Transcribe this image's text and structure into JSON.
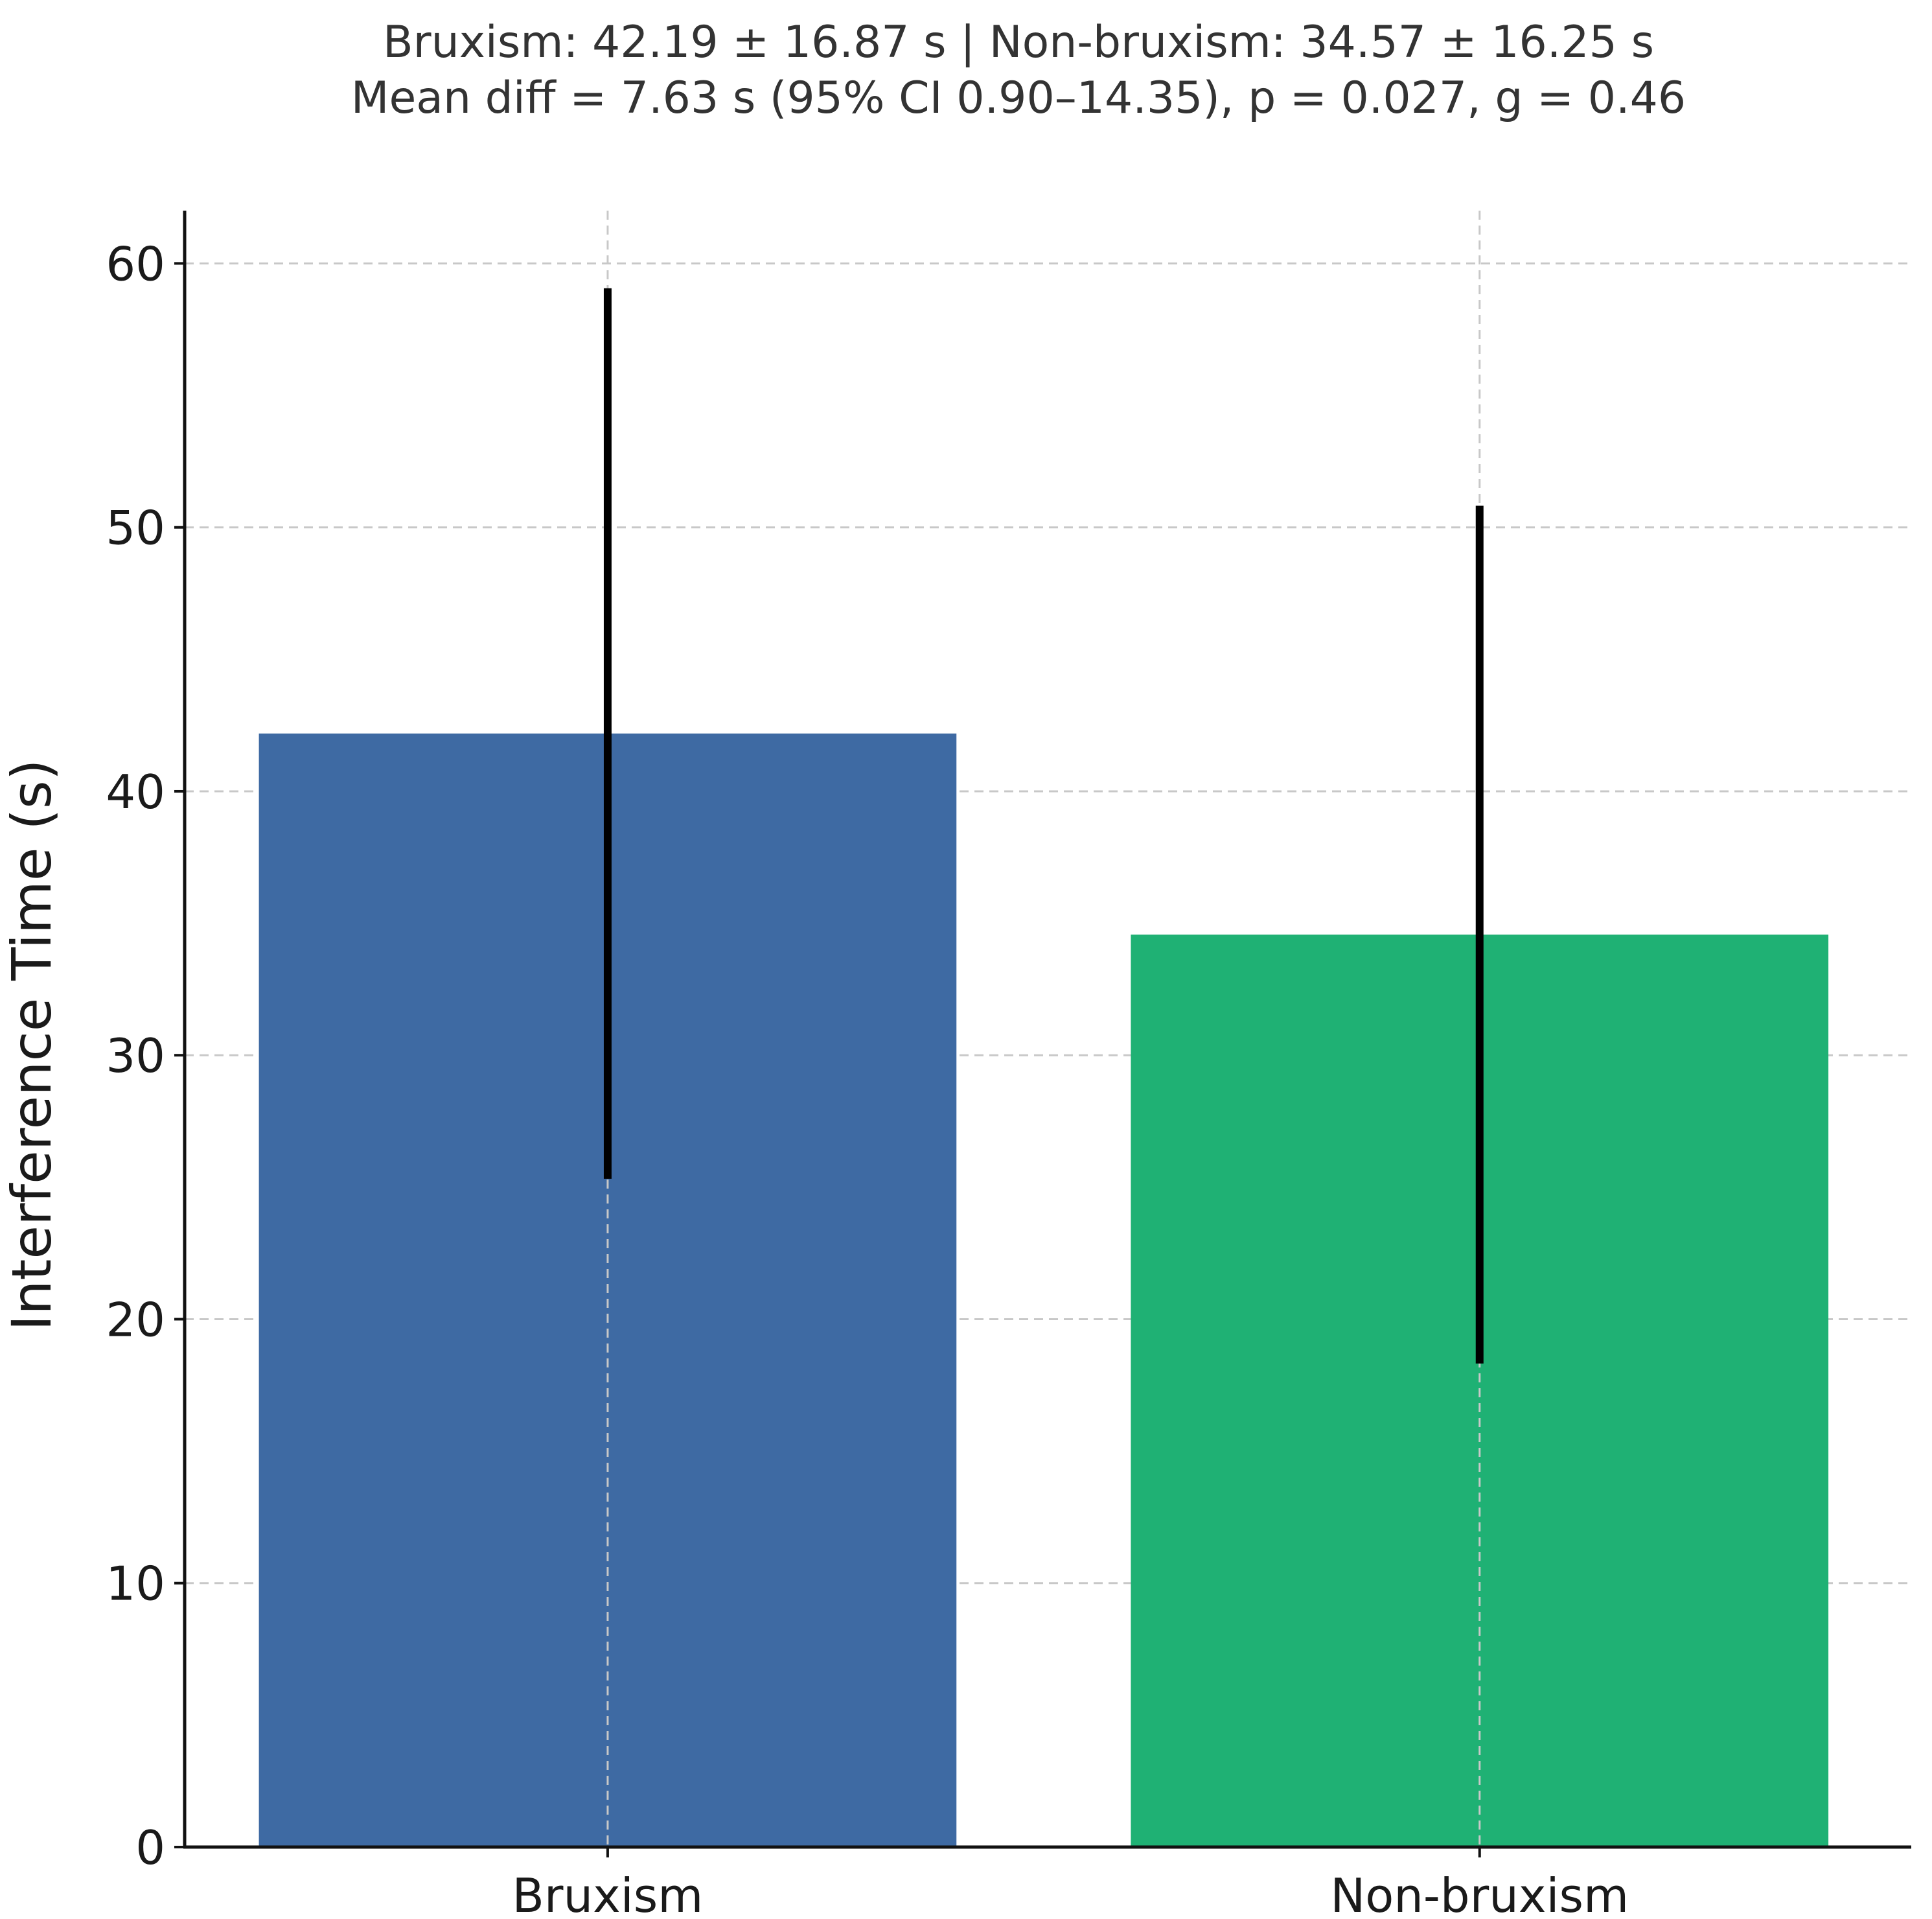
{
  "chart_data": {
    "type": "bar",
    "title_lines": [
      "Bruxism: 42.19 ± 16.87 s  |  Non-bruxism: 34.57 ± 16.25 s",
      "Mean diff = 7.63 s (95% CI 0.90–14.35), p = 0.027, g = 0.46"
    ],
    "categories": [
      "Bruxism",
      "Non-bruxism"
    ],
    "values": [
      42.19,
      34.57
    ],
    "errors": [
      16.87,
      16.25
    ],
    "colors": [
      "#3e6aa3",
      "#1fb174"
    ],
    "xlabel": "",
    "ylabel": "Interference Time (s)",
    "ylim": [
      0,
      62
    ],
    "yticks": [
      0,
      10,
      20,
      30,
      40,
      50,
      60
    ],
    "ytick_labels": [
      "0",
      "10",
      "20",
      "30",
      "40",
      "50",
      "60"
    ],
    "grid": true,
    "legend": "none"
  }
}
